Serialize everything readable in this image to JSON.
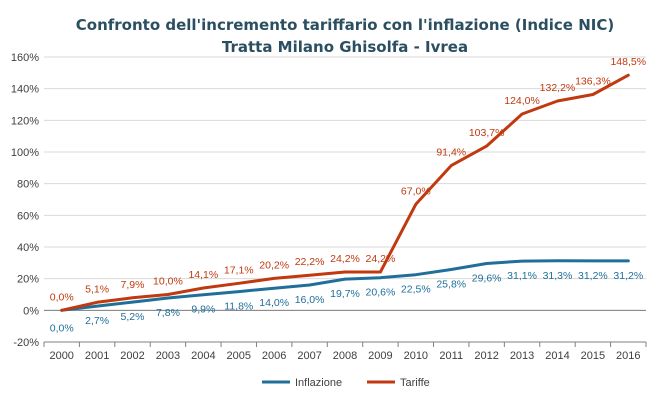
{
  "chart_data": {
    "type": "line",
    "title": "Confronto dell'incremento tariffario con l'inflazione (Indice NIC)",
    "subtitle": "Tratta Milano Ghisolfa - Ivrea",
    "categories": [
      "2000",
      "2001",
      "2002",
      "2003",
      "2004",
      "2005",
      "2006",
      "2007",
      "2008",
      "2009",
      "2010",
      "2011",
      "2012",
      "2013",
      "2014",
      "2015",
      "2016"
    ],
    "yticks": [
      "-20%",
      "0%",
      "20%",
      "40%",
      "60%",
      "80%",
      "100%",
      "120%",
      "140%",
      "160%"
    ],
    "ylim": [
      -20,
      160
    ],
    "grid": true,
    "legend_position": "bottom",
    "series": [
      {
        "name": "Inflazione",
        "color": "#1f6f9a",
        "values": [
          0.0,
          2.7,
          5.2,
          7.8,
          9.9,
          11.8,
          14.0,
          16.0,
          19.7,
          20.6,
          22.5,
          25.8,
          29.6,
          31.1,
          31.3,
          31.2,
          31.2
        ],
        "labels": [
          "0,0%",
          "2,7%",
          "5,2%",
          "7,8%",
          "9,9%",
          "11,8%",
          "14,0%",
          "16,0%",
          "19,7%",
          "20,6%",
          "22,5%",
          "25,8%",
          "29,6%",
          "31,1%",
          "31,3%",
          "31,2%",
          "31,2%"
        ]
      },
      {
        "name": "Tariffe",
        "color": "#c0390f",
        "values": [
          0.0,
          5.1,
          7.9,
          10.0,
          14.1,
          17.1,
          20.2,
          22.2,
          24.2,
          24.2,
          67.0,
          91.4,
          103.7,
          124.0,
          132.2,
          136.3,
          148.5
        ],
        "labels": [
          "0,0%",
          "5,1%",
          "7,9%",
          "10,0%",
          "14,1%",
          "17,1%",
          "20,2%",
          "22,2%",
          "24,2%",
          "24,2%",
          "67,0%",
          "91,4%",
          "103,7%",
          "124,0%",
          "132,2%",
          "136,3%",
          "148,5%"
        ]
      }
    ]
  }
}
